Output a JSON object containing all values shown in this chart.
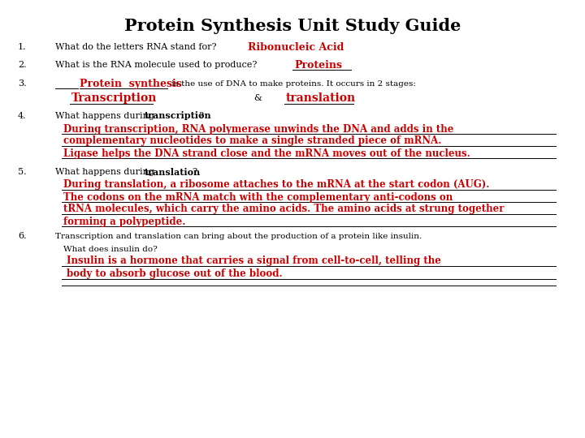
{
  "title": "Protein Synthesis Unit Study Guide",
  "background_color": "#ffffff",
  "black": "#000000",
  "red": "#cc0000",
  "q1_num": "1.",
  "q1_text": "What do the letters RNA stand for?",
  "q1_answer": "Ribonucleic Acid",
  "q2_num": "2.",
  "q2_text": "What is the RNA molecule used to produce?",
  "q2_answer": "Proteins",
  "q3_num": "3.",
  "q3_answer": "Protein  synthesis",
  "q3_suffix": " is the use of DNA to make proteins. It occurs in 2 stages:",
  "q3_stage1": "Transcription",
  "q3_connector": "&",
  "q3_stage2": "translation",
  "q4_num": "4.",
  "q4_text_pre": "What happens during ",
  "q4_text_bold": "transcription",
  "q4_text_post": "?",
  "q4_lines": [
    "During transcription, RNA polymerase unwinds the DNA and adds in the",
    "complementary nucleotides to make a single stranded piece of mRNA.",
    "Ligase helps the DNA strand close and the mRNA moves out of the nucleus."
  ],
  "q5_num": "5.",
  "q5_text_pre": "What happens during ",
  "q5_text_bold": "translation",
  "q5_text_post": "?",
  "q5_lines": [
    "During translation, a ribosome attaches to the mRNA at the start codon (AUG).",
    "The codons on the mRNA match with the complementary anti-codons on",
    "tRNA molecules, which carry the amino acids. The amino acids at strung together",
    "forming a polypeptide."
  ],
  "q6_num": "6.",
  "q6_text": "Transcription and translation can bring about the production of a protein like insulin.",
  "q6_sub": "What does insulin do?",
  "q6_lines": [
    "Insulin is a hormone that carries a signal from cell-to-cell, telling the",
    "body to absorb glucose out of the blood."
  ]
}
